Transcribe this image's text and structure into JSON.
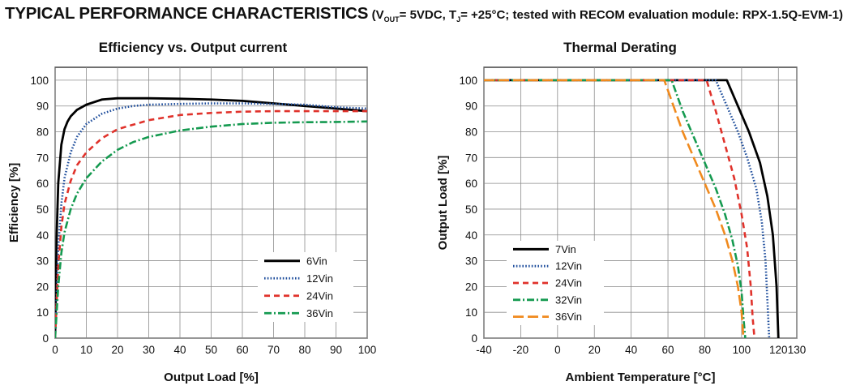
{
  "header": {
    "title": "TYPICAL PERFORMANCE CHARACTERISTICS",
    "cond_open": "(V",
    "cond_vsub": "OUT",
    "cond_mid": "= 5VDC, T",
    "cond_tsub": "J",
    "cond_end": "= +25°C; tested with RECOM evaluation module: RPX-1.5Q-EVM-1)"
  },
  "chart_data": [
    {
      "type": "line",
      "title": "Efficiency vs. Output current",
      "xlabel": "Output Load [%]",
      "ylabel": "Efficiency [%]",
      "xlim": [
        0,
        100
      ],
      "ylim": [
        0,
        105
      ],
      "xticks": [
        0,
        10,
        20,
        30,
        40,
        50,
        60,
        70,
        80,
        90,
        100
      ],
      "yticks": [
        0,
        10,
        20,
        30,
        40,
        50,
        60,
        70,
        80,
        90,
        100
      ],
      "grid": true,
      "legend_position": "bottom-right",
      "series": [
        {
          "name": "6Vin",
          "style": "solid",
          "color": "#000000",
          "x": [
            0,
            0.5,
            1,
            2,
            3,
            4,
            5,
            7,
            10,
            15,
            20,
            25,
            30,
            40,
            50,
            60,
            70,
            80,
            90,
            100
          ],
          "y": [
            0,
            40,
            60,
            75,
            81,
            84,
            86,
            88.5,
            90.5,
            92.5,
            93,
            93,
            93,
            92.8,
            92.5,
            92,
            91,
            90,
            89,
            88
          ]
        },
        {
          "name": "12Vin",
          "style": "dotted",
          "color": "#1f4e9c",
          "x": [
            0,
            1,
            2,
            3,
            5,
            7,
            10,
            15,
            20,
            25,
            30,
            40,
            50,
            60,
            70,
            80,
            90,
            100
          ],
          "y": [
            0,
            35,
            52,
            62,
            72,
            78,
            83,
            87,
            89,
            90,
            90.5,
            90.8,
            91,
            91,
            90.8,
            90.5,
            89.5,
            89
          ]
        },
        {
          "name": "24Vin",
          "style": "dashed",
          "color": "#e0322b",
          "x": [
            0,
            1,
            2,
            3,
            5,
            7,
            10,
            15,
            20,
            30,
            40,
            50,
            60,
            70,
            80,
            90,
            100
          ],
          "y": [
            0,
            28,
            43,
            52,
            61,
            67,
            72,
            77.5,
            81,
            84.5,
            86.5,
            87.3,
            87.8,
            88,
            88,
            88,
            88
          ]
        },
        {
          "name": "36Vin",
          "style": "dashdot",
          "color": "#159a50",
          "x": [
            0,
            1,
            2,
            3,
            5,
            7,
            10,
            15,
            20,
            25,
            30,
            40,
            50,
            60,
            70,
            80,
            90,
            100
          ],
          "y": [
            0,
            20,
            33,
            41,
            50,
            56,
            62,
            68.5,
            73,
            76,
            78,
            80.5,
            82,
            83,
            83.5,
            83.7,
            83.8,
            84
          ]
        }
      ]
    },
    {
      "type": "line",
      "title": "Thermal Derating",
      "xlabel": "Ambient Temperature [°C]",
      "ylabel": "Output Load [%]",
      "xlim": [
        -40,
        130
      ],
      "ylim": [
        0,
        105
      ],
      "xticks": [
        -40,
        -20,
        0,
        20,
        40,
        60,
        80,
        100,
        120,
        130
      ],
      "yticks": [
        0,
        10,
        20,
        30,
        40,
        50,
        60,
        70,
        80,
        90,
        100
      ],
      "grid": true,
      "legend_position": "bottom-left",
      "series": [
        {
          "name": "7Vin",
          "style": "solid",
          "color": "#000000",
          "x": [
            -40,
            92,
            98,
            104,
            110,
            114,
            117,
            119,
            120
          ],
          "y": [
            100,
            100,
            90,
            80,
            68,
            55,
            40,
            20,
            0
          ]
        },
        {
          "name": "12Vin",
          "style": "dotted",
          "color": "#1f4e9c",
          "x": [
            -40,
            86,
            92,
            98,
            103,
            108,
            111,
            113,
            114,
            115
          ],
          "y": [
            100,
            100,
            90,
            80,
            70,
            58,
            45,
            30,
            15,
            0
          ]
        },
        {
          "name": "24Vin",
          "style": "dashed",
          "color": "#e0322b",
          "x": [
            -40,
            81,
            86,
            91,
            96,
            100,
            103,
            105,
            106,
            107
          ],
          "y": [
            100,
            100,
            88,
            75,
            62,
            48,
            35,
            20,
            8,
            0
          ]
        },
        {
          "name": "32Vin",
          "style": "dashdot",
          "color": "#159a50",
          "x": [
            -40,
            62,
            68,
            74,
            80,
            86,
            91,
            95,
            98,
            100,
            101,
            102
          ],
          "y": [
            100,
            100,
            88,
            78,
            68,
            58,
            48,
            38,
            28,
            18,
            8,
            0
          ]
        },
        {
          "name": "36Vin",
          "style": "longdash",
          "color": "#f08a1e",
          "x": [
            -40,
            58,
            63,
            68,
            74,
            80,
            86,
            91,
            95,
            98,
            100,
            101
          ],
          "y": [
            100,
            100,
            90,
            80,
            70,
            60,
            50,
            40,
            30,
            20,
            10,
            0
          ]
        }
      ]
    }
  ]
}
